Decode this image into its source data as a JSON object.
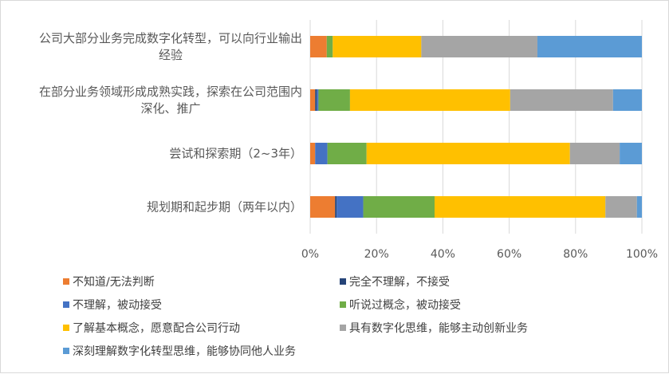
{
  "chart_data": {
    "type": "bar",
    "orientation": "horizontal",
    "stacked": true,
    "percent": true,
    "categories": [
      [
        "公司大部分业务完成数字化转型，可以向行业输出",
        "经验"
      ],
      [
        "在部分业务领域形成成熟实践，探索在公司范围内",
        "深化、推广"
      ],
      [
        "尝试和探索期（2~3年）"
      ],
      [
        "规划期和起步期（两年以内）"
      ]
    ],
    "xlim": [
      0,
      1
    ],
    "ticks": [
      "0%",
      "20%",
      "40%",
      "60%",
      "80%",
      "100%"
    ],
    "tick_values": [
      0,
      0.2,
      0.4,
      0.6,
      0.8,
      1.0
    ],
    "grid": true,
    "legend_position": "bottom",
    "series": [
      {
        "name": "不知道/无法判断",
        "color": "#ED7D31",
        "values": [
          0.05,
          0.015,
          0.015,
          0.075
        ]
      },
      {
        "name": "完全不理解，不接受",
        "color": "#264478",
        "values": [
          0.0,
          0.005,
          0.0,
          0.005
        ]
      },
      {
        "name": "不理解，被动接受",
        "color": "#4472C4",
        "values": [
          0.0,
          0.005,
          0.037,
          0.08
        ]
      },
      {
        "name": "听说过概念，被动接受",
        "color": "#70AD47",
        "values": [
          0.018,
          0.095,
          0.118,
          0.215
        ]
      },
      {
        "name": "了解基本概念，愿意配合公司行动",
        "color": "#FFC000",
        "values": [
          0.267,
          0.483,
          0.613,
          0.515
        ]
      },
      {
        "name": "具有数字化思维，能够主动创新业务",
        "color": "#A5A5A5",
        "values": [
          0.35,
          0.31,
          0.15,
          0.095
        ]
      },
      {
        "name": "深刻理解数字化转型思维，能够协同他人业务",
        "color": "#5B9BD5",
        "values": [
          0.315,
          0.087,
          0.067,
          0.015
        ]
      }
    ]
  }
}
